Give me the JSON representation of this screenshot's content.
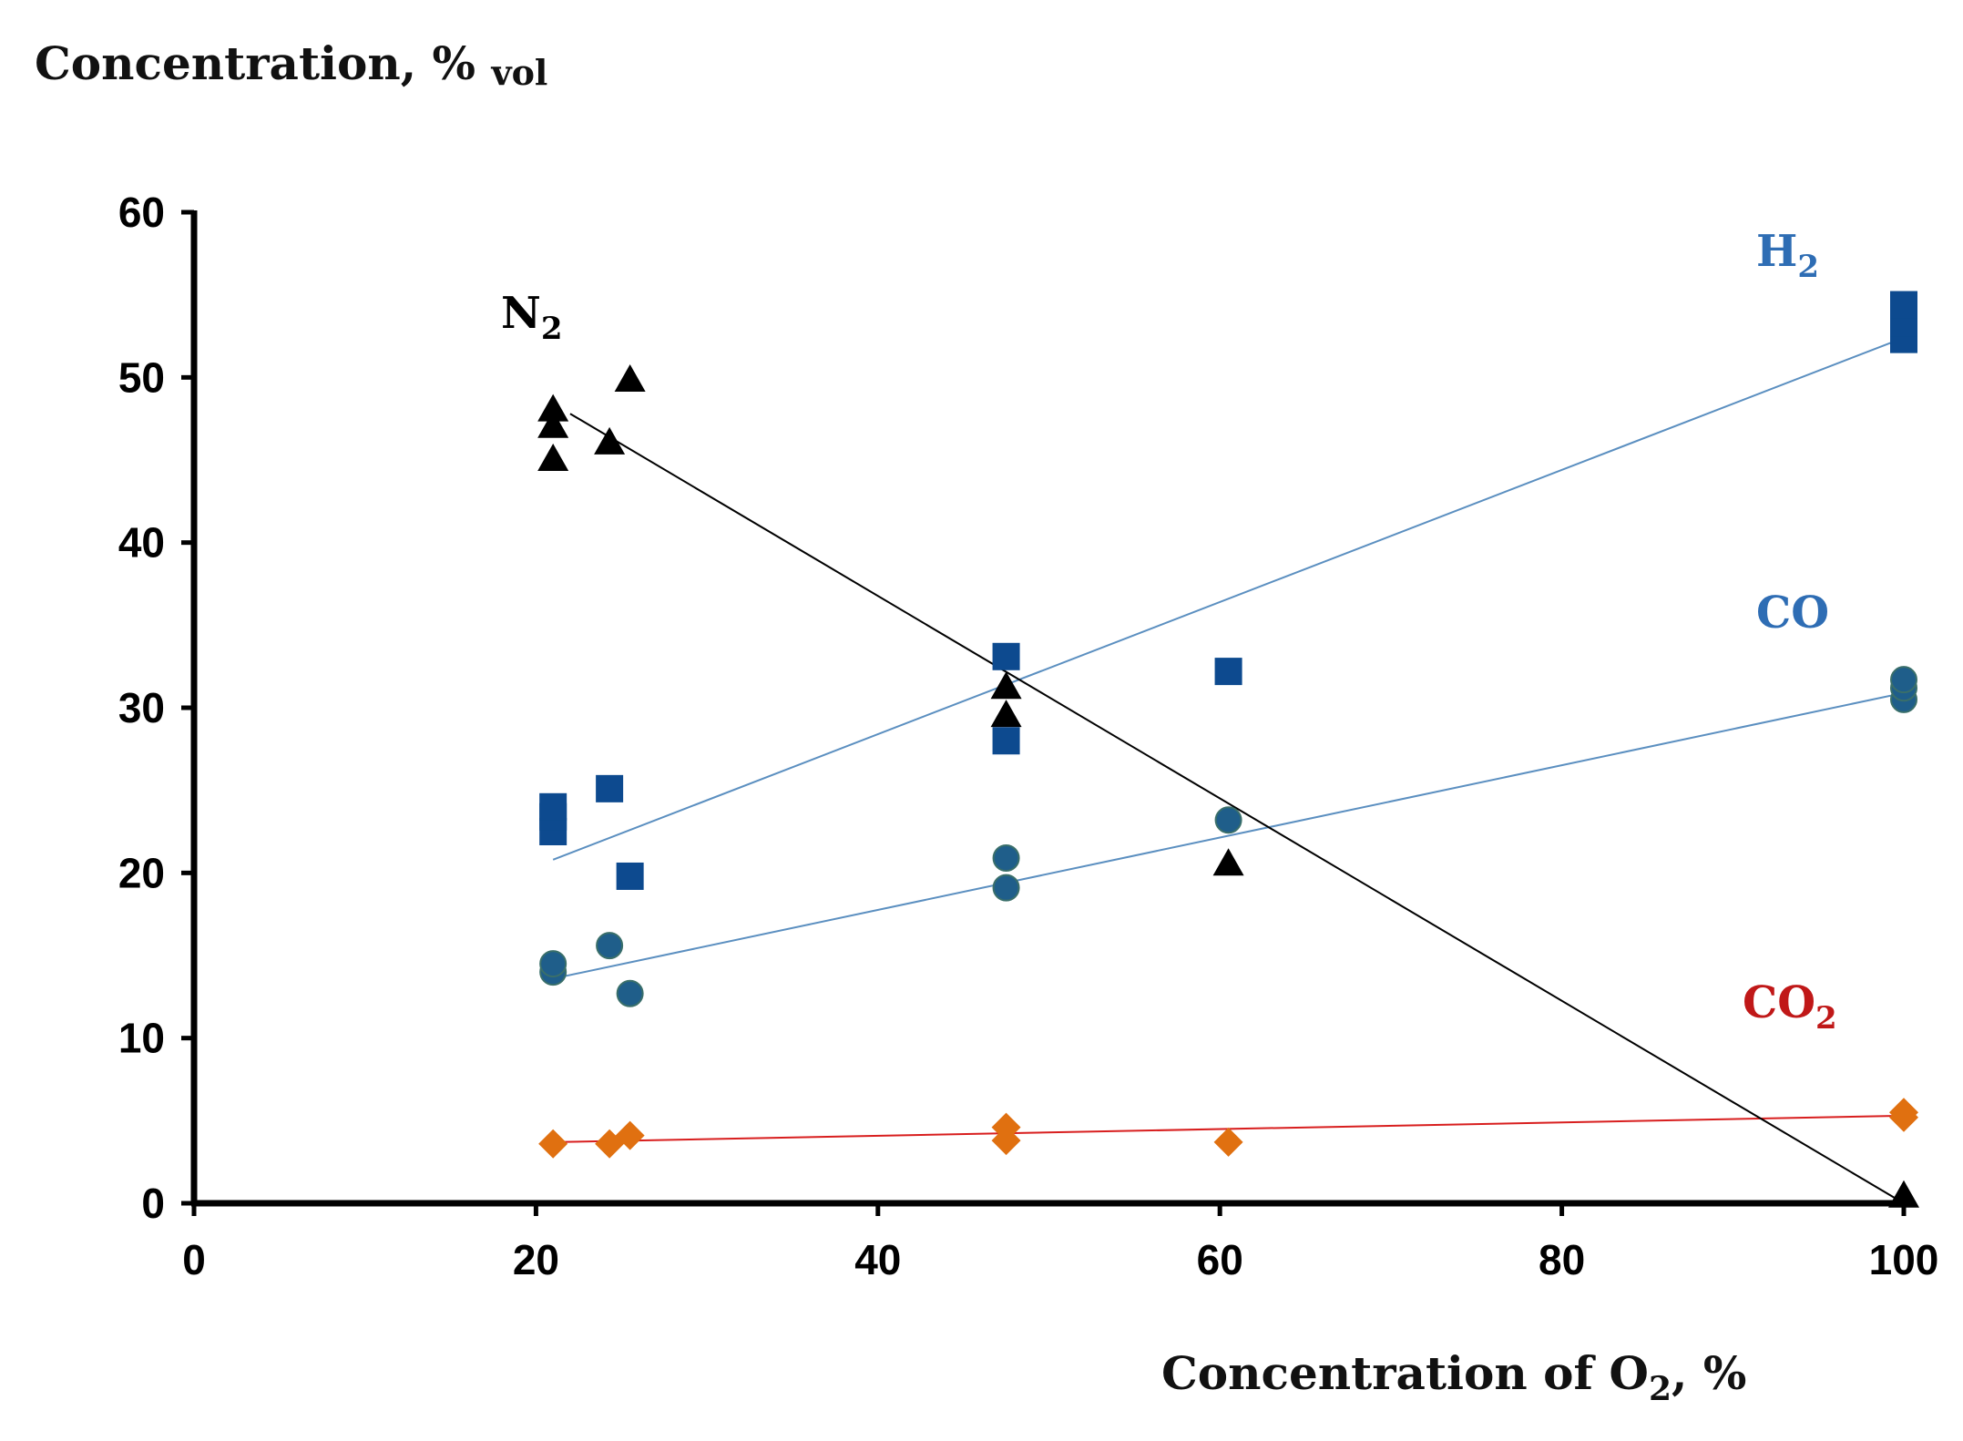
{
  "chart_data": {
    "type": "scatter",
    "title": "",
    "ylabel": "Concentration, %",
    "ylabel_sub": "vol",
    "xlabel": "Concentration of  O",
    "xlabel_sub": "2",
    "xlabel_suffix": ", %",
    "xlim": [
      0,
      100
    ],
    "ylim": [
      0,
      60
    ],
    "xticks": [
      0,
      20,
      40,
      60,
      80,
      100
    ],
    "yticks": [
      0,
      10,
      20,
      30,
      40,
      50,
      60
    ],
    "grid": false,
    "legend": "inline labels",
    "series": [
      {
        "name": "H2",
        "label_main": "H",
        "label_sub": "2",
        "color": "#0d4a8f",
        "line_color": "#5b8fc0",
        "marker": "square",
        "x": [
          21,
          21,
          21,
          24.3,
          25.5,
          47.5,
          47.5,
          60.5,
          100,
          100,
          100
        ],
        "y": [
          22.5,
          23.4,
          24.0,
          25.1,
          19.8,
          28.0,
          33.1,
          32.2,
          52.3,
          53.3,
          54.4
        ],
        "trend": {
          "x": [
            21,
            100
          ],
          "y": [
            20.8,
            52.4
          ]
        }
      },
      {
        "name": "CO",
        "label_main": "CO",
        "label_sub": "",
        "color": "#1f5e8a",
        "line_color": "#5b8fc0",
        "marker": "circle",
        "x": [
          21,
          21,
          24.3,
          25.5,
          47.5,
          47.5,
          60.5,
          100,
          100,
          100
        ],
        "y": [
          14.0,
          14.5,
          15.6,
          12.7,
          19.1,
          20.9,
          23.2,
          30.5,
          31.2,
          31.7
        ],
        "trend": {
          "x": [
            21,
            100
          ],
          "y": [
            13.6,
            30.9
          ]
        }
      },
      {
        "name": "CO2",
        "label_main": "CO",
        "label_sub": "2",
        "color": "#e07010",
        "line_color": "#d81e1e",
        "marker": "diamond",
        "x": [
          21,
          24.3,
          25.5,
          47.5,
          47.5,
          60.5,
          100,
          100
        ],
        "y": [
          3.6,
          3.6,
          4.1,
          3.8,
          4.6,
          3.7,
          5.2,
          5.5
        ],
        "trend": {
          "x": [
            21,
            100
          ],
          "y": [
            3.7,
            5.3
          ]
        }
      },
      {
        "name": "N2",
        "label_main": "N",
        "label_sub": "2",
        "color": "#000000",
        "line_color": "#000000",
        "marker": "triangle",
        "x": [
          21,
          21,
          21,
          24.3,
          25.5,
          47.5,
          47.5,
          60.5,
          100
        ],
        "y": [
          45.0,
          47.0,
          48.0,
          46.0,
          49.8,
          29.5,
          31.2,
          20.5,
          0.4
        ],
        "trend": {
          "x": [
            22,
            100
          ],
          "y": [
            47.8,
            0.0
          ]
        }
      }
    ]
  }
}
